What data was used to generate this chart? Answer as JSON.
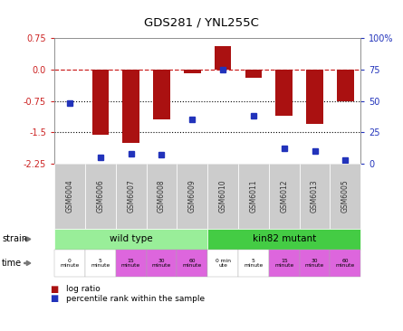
{
  "title": "GDS281 / YNL255C",
  "samples": [
    "GSM6004",
    "GSM6006",
    "GSM6007",
    "GSM6008",
    "GSM6009",
    "GSM6010",
    "GSM6011",
    "GSM6012",
    "GSM6013",
    "GSM6005"
  ],
  "log_ratio": [
    0.0,
    -1.55,
    -1.75,
    -1.2,
    -0.08,
    0.55,
    -0.2,
    -1.1,
    -1.3,
    -0.75
  ],
  "percentile": [
    48,
    5,
    8,
    7,
    35,
    75,
    38,
    12,
    10,
    3
  ],
  "ylim": [
    -2.25,
    0.75
  ],
  "yticks_left": [
    0.75,
    0.0,
    -0.75,
    -1.5,
    -2.25
  ],
  "yticks_right": [
    100,
    75,
    50,
    25,
    0
  ],
  "bar_color": "#aa1111",
  "dot_color": "#2233bb",
  "bg_color": "#ffffff",
  "wild_type_color": "#99ee99",
  "kin82_color": "#44cc44",
  "time_colors": [
    "#ffffff",
    "#ffffff",
    "#dd66dd",
    "#dd66dd",
    "#dd66dd",
    "#ffffff",
    "#ffffff",
    "#dd66dd",
    "#dd66dd",
    "#dd66dd"
  ],
  "gsm_bg": "#cccccc",
  "strain_labels": [
    "wild type",
    "kin82 mutant"
  ],
  "time_labels": [
    "0\nminute",
    "5\nminute",
    "15\nminute",
    "30\nminute",
    "60\nminute",
    "0 min\nute",
    "5\nminute",
    "15\nminute",
    "30\nminute",
    "60\nminute"
  ],
  "legend_bar_label": "log ratio",
  "legend_dot_label": "percentile rank within the sample"
}
